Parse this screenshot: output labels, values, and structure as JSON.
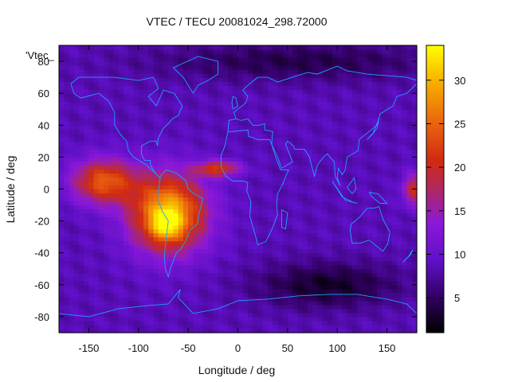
{
  "chart_data": {
    "type": "heatmap",
    "title": "VTEC / TECU 20081024_298.72000",
    "xlabel": "Longitude / deg",
    "ylabel": "Latitude / deg",
    "key_label": "'Vtec_",
    "xlim": [
      -180,
      180
    ],
    "ylim": [
      -90,
      90
    ],
    "x_ticks": [
      -150,
      -100,
      -50,
      0,
      50,
      100,
      150
    ],
    "y_ticks": [
      -80,
      -60,
      -40,
      -20,
      0,
      20,
      40,
      60,
      80
    ],
    "colorbar": {
      "range": [
        1,
        34
      ],
      "ticks": [
        5,
        10,
        15,
        20,
        25,
        30
      ],
      "palette": "black-purple-red-orange-yellow"
    },
    "features": [
      {
        "name": "background",
        "value": 8.5
      },
      {
        "name": "equatorial-anomaly-south-america",
        "lon": -70,
        "lat": -15,
        "peak": 33
      },
      {
        "name": "peak-brazil",
        "lon": -72,
        "lat": -22,
        "peak": 34
      },
      {
        "name": "pacific-anomaly-band",
        "lon": -135,
        "lat": 5,
        "peak": 24
      },
      {
        "name": "atlantic-extension",
        "lon": -20,
        "lat": 13,
        "peak": 21
      },
      {
        "name": "east-edge-anomaly",
        "lon": 178,
        "lat": 0,
        "peak": 20
      },
      {
        "name": "low-southern-ocean",
        "lon": 90,
        "lat": -60,
        "peak": 2.5
      },
      {
        "name": "low-arctic",
        "lon": 60,
        "lat": 80,
        "peak": 3.5
      }
    ]
  }
}
